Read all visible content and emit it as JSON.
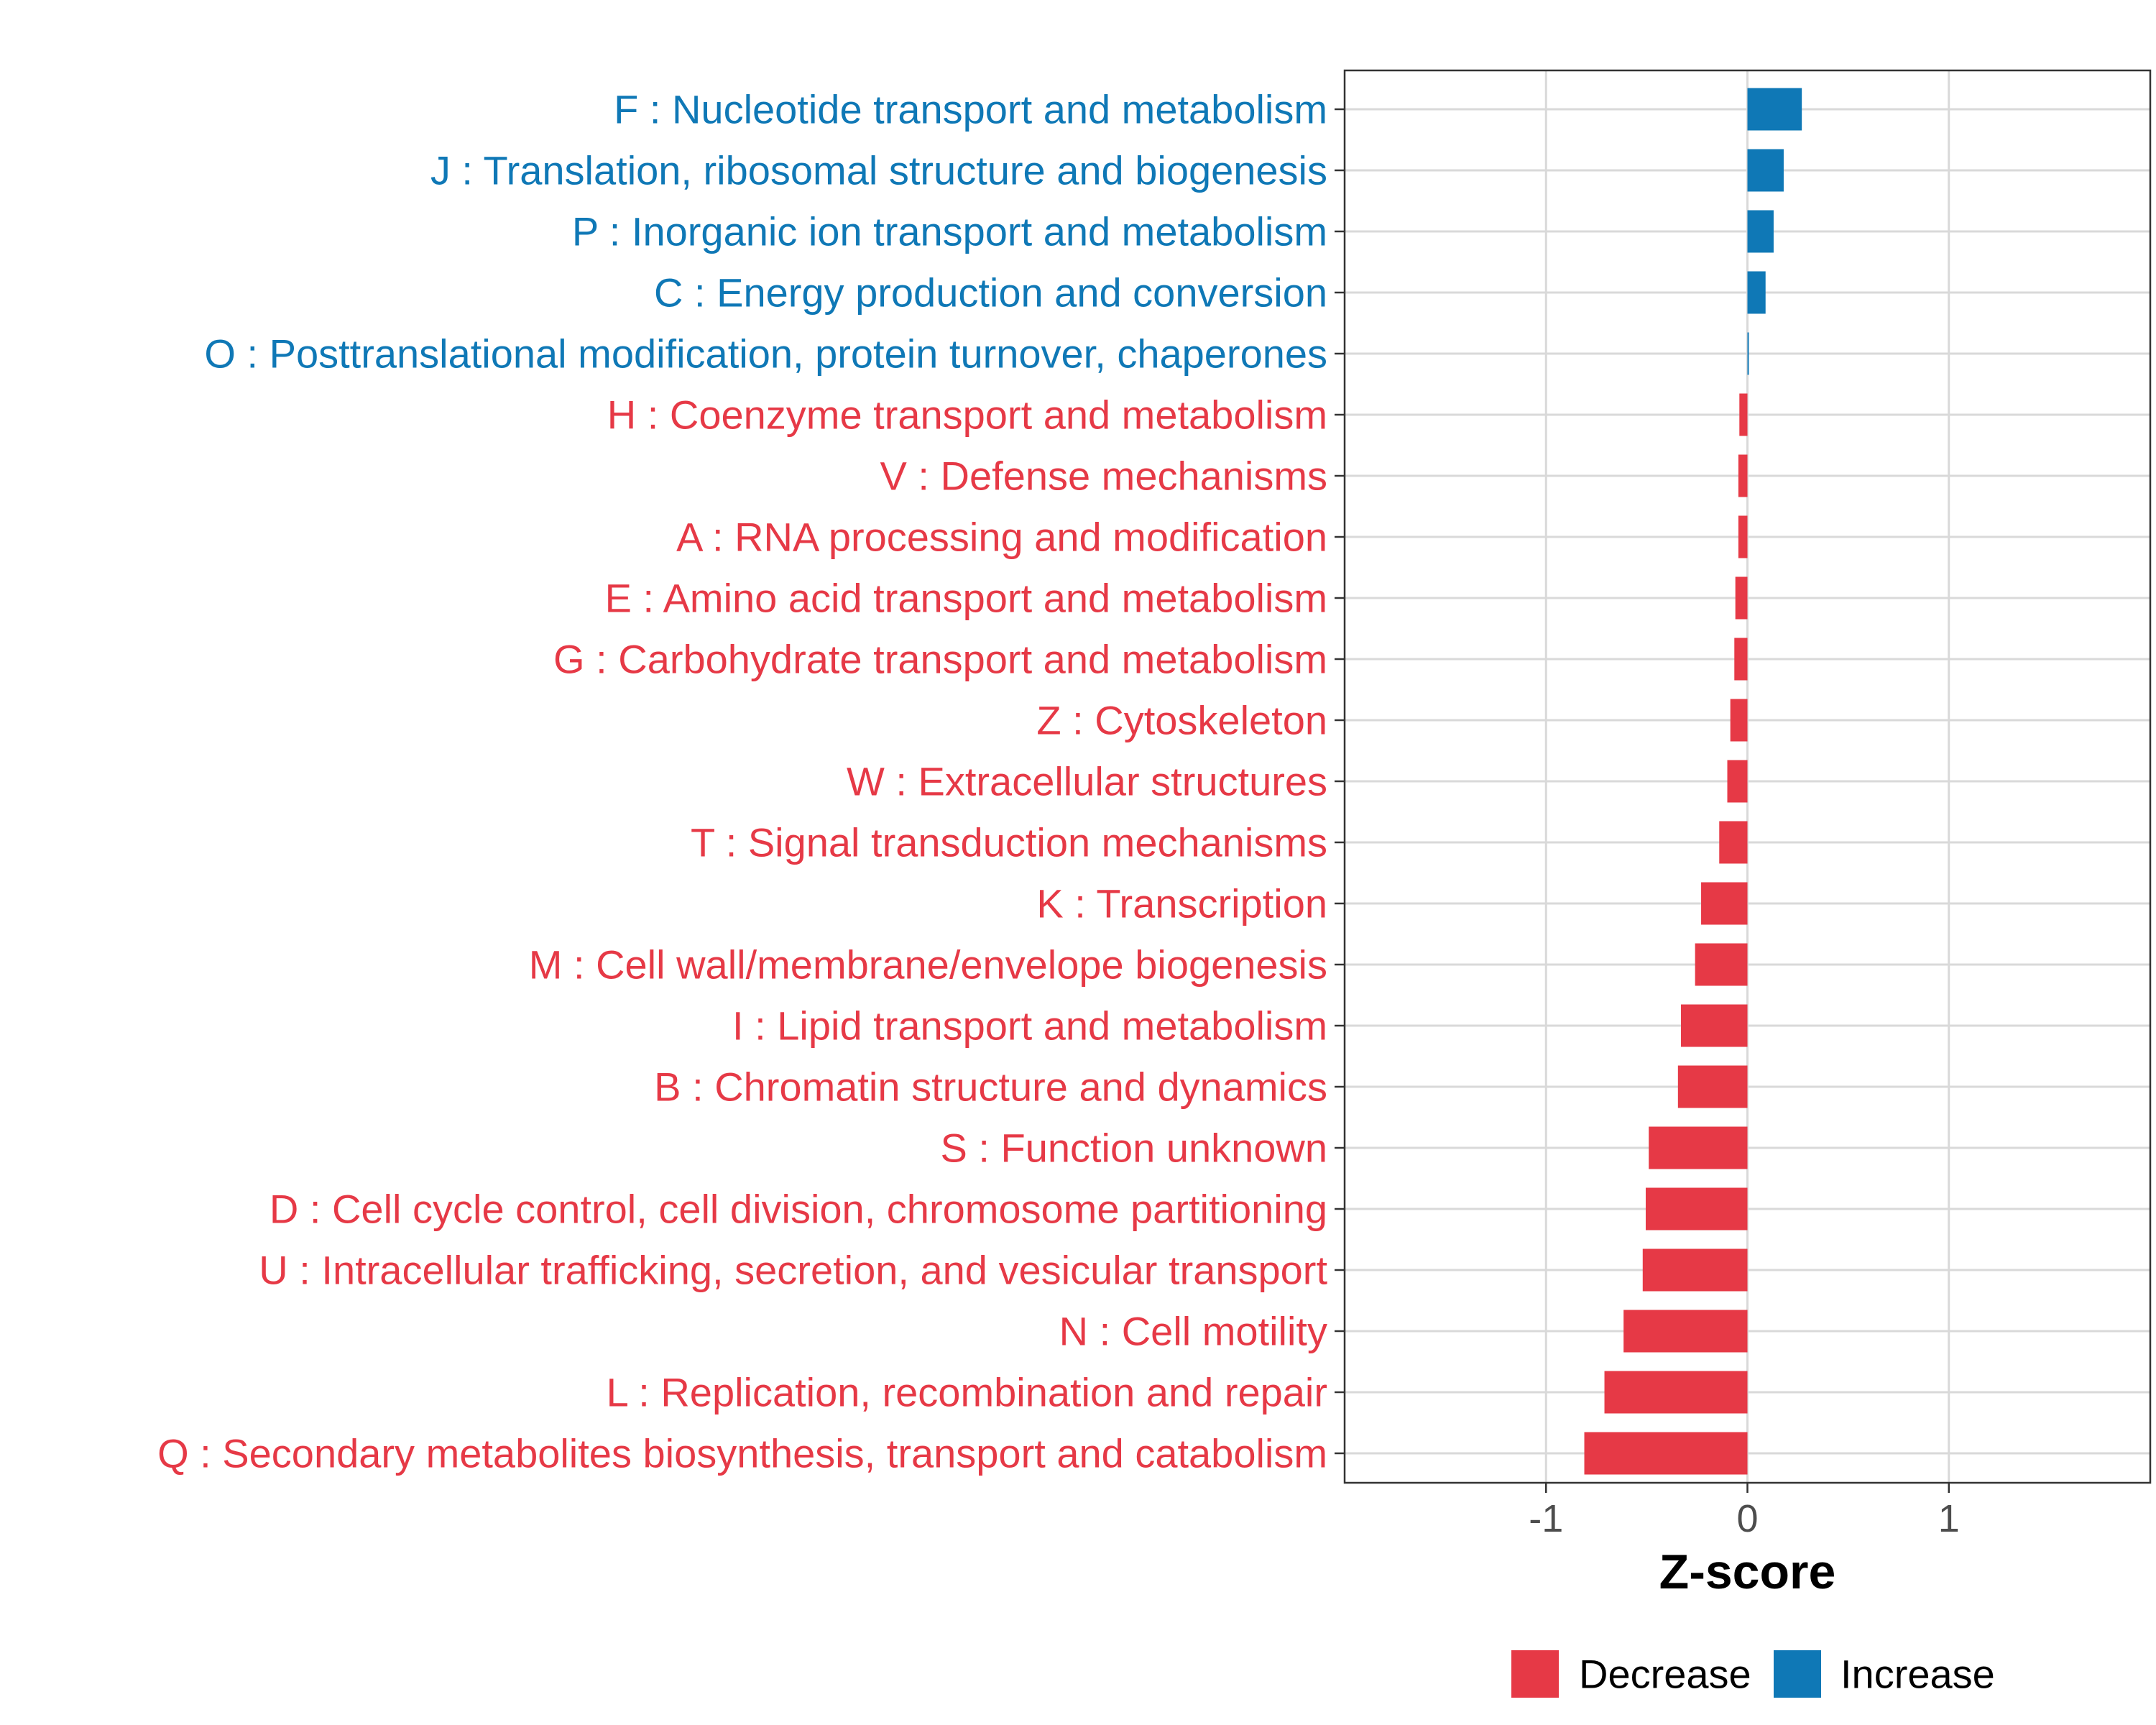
{
  "chart_data": {
    "type": "bar",
    "orientation": "horizontal",
    "title": "",
    "xlabel": "Z-score",
    "ylabel": "",
    "xlim": [
      -2.0,
      2.0
    ],
    "xticks": [
      -1,
      0,
      1
    ],
    "xtick_labels": [
      "-1",
      "0",
      "1"
    ],
    "grid": true,
    "colors": {
      "Decrease": "#e63946",
      "Increase": "#0f78b6"
    },
    "legend": {
      "position": "bottom",
      "entries": [
        {
          "name": "Decrease",
          "color": "#e63946"
        },
        {
          "name": "Increase",
          "color": "#0f78b6"
        }
      ]
    },
    "categories": [
      {
        "label": "F : Nucleotide transport and metabolism",
        "value": 0.27,
        "group": "Increase"
      },
      {
        "label": "J : Translation, ribosomal structure and biogenesis",
        "value": 0.18,
        "group": "Increase"
      },
      {
        "label": "P : Inorganic ion transport and metabolism",
        "value": 0.13,
        "group": "Increase"
      },
      {
        "label": "C : Energy production and conversion",
        "value": 0.09,
        "group": "Increase"
      },
      {
        "label": "O : Posttranslational modification, protein turnover, chaperones",
        "value": 0.005,
        "group": "Increase"
      },
      {
        "label": "H : Coenzyme transport and metabolism",
        "value": -0.04,
        "group": "Decrease"
      },
      {
        "label": "V : Defense mechanisms",
        "value": -0.045,
        "group": "Decrease"
      },
      {
        "label": "A : RNA processing and modification",
        "value": -0.045,
        "group": "Decrease"
      },
      {
        "label": "E : Amino acid transport and metabolism",
        "value": -0.06,
        "group": "Decrease"
      },
      {
        "label": "G : Carbohydrate transport and metabolism",
        "value": -0.065,
        "group": "Decrease"
      },
      {
        "label": "Z : Cytoskeleton",
        "value": -0.085,
        "group": "Decrease"
      },
      {
        "label": "W : Extracellular structures",
        "value": -0.1,
        "group": "Decrease"
      },
      {
        "label": "T : Signal transduction mechanisms",
        "value": -0.14,
        "group": "Decrease"
      },
      {
        "label": "K : Transcription",
        "value": -0.23,
        "group": "Decrease"
      },
      {
        "label": "M : Cell wall/membrane/envelope biogenesis",
        "value": -0.26,
        "group": "Decrease"
      },
      {
        "label": "I : Lipid transport and metabolism",
        "value": -0.33,
        "group": "Decrease"
      },
      {
        "label": "B : Chromatin structure and dynamics",
        "value": -0.345,
        "group": "Decrease"
      },
      {
        "label": "S : Function unknown",
        "value": -0.49,
        "group": "Decrease"
      },
      {
        "label": "D : Cell cycle control, cell division, chromosome partitioning",
        "value": -0.505,
        "group": "Decrease"
      },
      {
        "label": "U : Intracellular trafficking, secretion, and vesicular transport",
        "value": -0.52,
        "group": "Decrease"
      },
      {
        "label": "N : Cell motility",
        "value": -0.615,
        "group": "Decrease"
      },
      {
        "label": "L : Replication, recombination and repair",
        "value": -0.71,
        "group": "Decrease"
      },
      {
        "label": "Q : Secondary metabolites biosynthesis, transport and catabolism",
        "value": -0.81,
        "group": "Decrease"
      }
    ]
  }
}
